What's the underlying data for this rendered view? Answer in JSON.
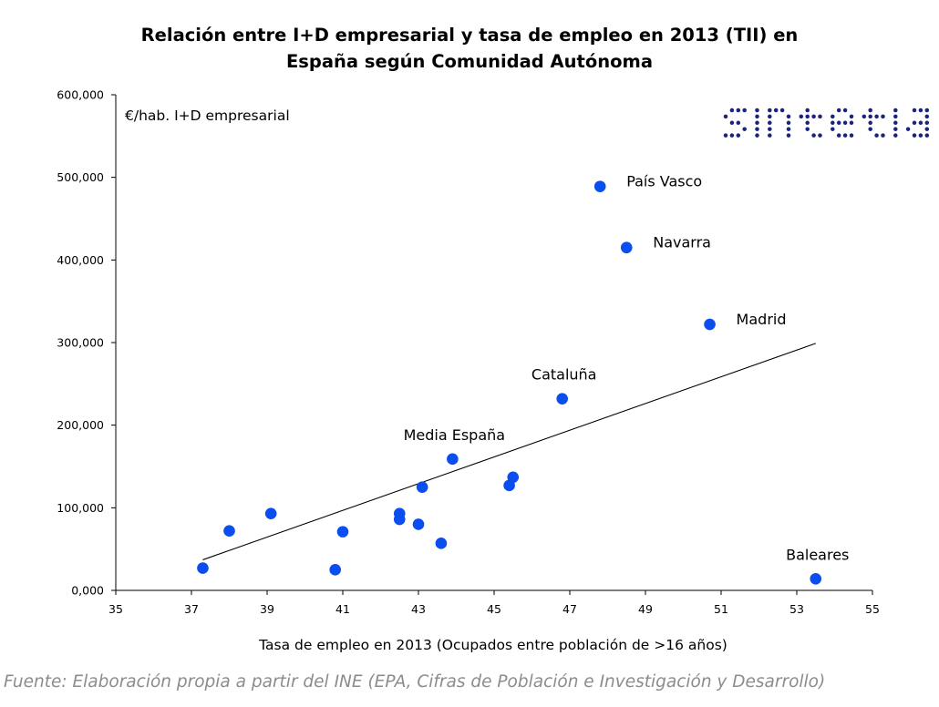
{
  "title_line1": "Relación entre I+D empresarial y tasa de empleo en 2013 (TII) en",
  "title_line2": "España según Comunidad Autónoma",
  "source": "Fuente: Elaboración propia a partir del INE (EPA, Cifras de Población e Investigación y Desarrollo)",
  "logo_text": "sintetia",
  "colors": {
    "point": "#0b4ef0",
    "trendline": "#000000",
    "axis": "#000000",
    "source": "#8c8c8c",
    "logo": "#1a237e"
  },
  "chart_data": {
    "type": "scatter",
    "xlabel": "Tasa de empleo en 2013 (Ocupados entre población de >16 años)",
    "ylabel": "€/hab. I+D empresarial",
    "xlim": [
      35,
      55
    ],
    "ylim": [
      0,
      600000
    ],
    "x_ticks": [
      35,
      37,
      39,
      41,
      43,
      45,
      47,
      49,
      51,
      53,
      55
    ],
    "y_ticks": [
      0,
      100000,
      200000,
      300000,
      400000,
      500000,
      600000
    ],
    "y_tick_labels": [
      "0,000",
      "100,000",
      "200,000",
      "300,000",
      "400,000",
      "500,000",
      "600,000"
    ],
    "grid": false,
    "points": [
      {
        "x": 47.8,
        "y": 489000,
        "label": "País Vasco"
      },
      {
        "x": 48.5,
        "y": 415000,
        "label": "Navarra"
      },
      {
        "x": 50.7,
        "y": 322000,
        "label": "Madrid"
      },
      {
        "x": 46.8,
        "y": 232000,
        "label": "Cataluña"
      },
      {
        "x": 43.9,
        "y": 159000,
        "label": "Media España"
      },
      {
        "x": 53.5,
        "y": 14000,
        "label": "Baleares"
      },
      {
        "x": 45.5,
        "y": 137000,
        "label": ""
      },
      {
        "x": 45.4,
        "y": 127000,
        "label": ""
      },
      {
        "x": 43.1,
        "y": 125000,
        "label": ""
      },
      {
        "x": 42.5,
        "y": 93000,
        "label": ""
      },
      {
        "x": 42.5,
        "y": 86000,
        "label": ""
      },
      {
        "x": 43.0,
        "y": 80000,
        "label": ""
      },
      {
        "x": 43.6,
        "y": 57000,
        "label": ""
      },
      {
        "x": 41.0,
        "y": 71000,
        "label": ""
      },
      {
        "x": 39.1,
        "y": 93000,
        "label": ""
      },
      {
        "x": 38.0,
        "y": 72000,
        "label": ""
      },
      {
        "x": 37.3,
        "y": 27000,
        "label": ""
      },
      {
        "x": 40.8,
        "y": 25000,
        "label": ""
      }
    ],
    "trendline": {
      "x": [
        37.3,
        53.5
      ],
      "y": [
        37000,
        299000
      ]
    }
  }
}
